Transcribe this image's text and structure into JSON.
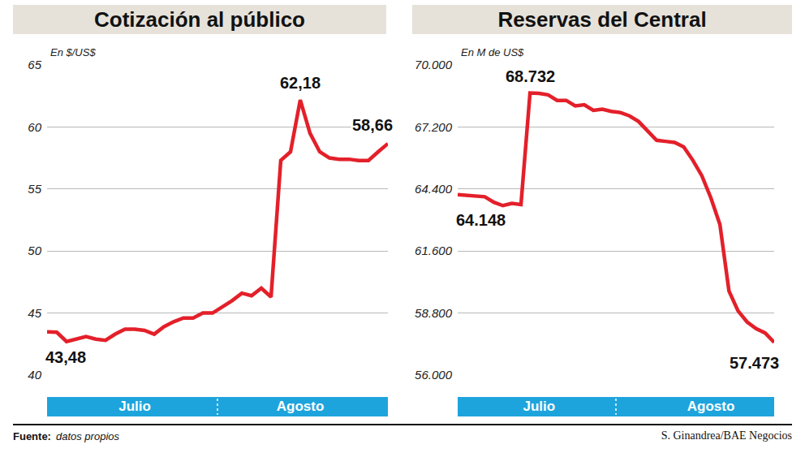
{
  "chart_data": [
    {
      "type": "line",
      "title": "Cotización al público",
      "y_label": "En $/US$",
      "categories": [
        null,
        null,
        null,
        null,
        null,
        null,
        null,
        null,
        null,
        "Julio",
        null,
        null,
        null,
        null,
        null,
        null,
        null,
        null,
        null,
        null,
        null,
        null,
        null,
        null,
        null,
        null,
        "Agosto",
        null,
        null,
        null,
        null,
        null,
        null,
        null,
        null,
        null
      ],
      "values": [
        43.48,
        43.45,
        42.7,
        42.9,
        43.1,
        42.9,
        42.8,
        43.3,
        43.7,
        43.7,
        43.6,
        43.3,
        43.9,
        44.3,
        44.6,
        44.6,
        45.0,
        45.0,
        45.5,
        46.0,
        46.6,
        46.4,
        47.0,
        46.3,
        57.3,
        58.0,
        62.18,
        59.5,
        58.0,
        57.5,
        57.4,
        57.4,
        57.3,
        57.3,
        58.0,
        58.66
      ],
      "value_labels": [
        "43,48",
        null,
        null,
        null,
        null,
        null,
        null,
        null,
        null,
        null,
        null,
        null,
        null,
        null,
        null,
        null,
        null,
        null,
        null,
        null,
        null,
        null,
        null,
        null,
        null,
        null,
        "62,18",
        null,
        null,
        null,
        null,
        null,
        null,
        null,
        null,
        "58,66"
      ],
      "data_labels": true,
      "color": "#e3202a",
      "ylim": [
        40,
        65
      ],
      "yticks": [
        40,
        45,
        50,
        55,
        60,
        65
      ],
      "grid": true
    },
    {
      "type": "line",
      "title": "Reservas del Central",
      "y_label": "En M de US$",
      "categories": [
        null,
        null,
        null,
        null,
        null,
        null,
        null,
        null,
        null,
        "Julio",
        null,
        null,
        null,
        null,
        null,
        null,
        null,
        null,
        null,
        null,
        null,
        null,
        null,
        null,
        null,
        null,
        null,
        null,
        "Agosto",
        null,
        null,
        null,
        null,
        null,
        null,
        null
      ],
      "values": [
        64148,
        64120,
        64100,
        64050,
        63800,
        63650,
        63750,
        63700,
        68732,
        68720,
        68650,
        68400,
        68400,
        68150,
        68200,
        67950,
        68000,
        67900,
        67850,
        67700,
        67450,
        67000,
        66600,
        66550,
        66500,
        66300,
        65700,
        65000,
        64000,
        62800,
        59800,
        58900,
        58400,
        58100,
        57900,
        57473
      ],
      "value_labels": [
        "64.148",
        null,
        null,
        null,
        null,
        null,
        null,
        null,
        "68.732",
        null,
        null,
        null,
        null,
        null,
        null,
        null,
        null,
        null,
        null,
        null,
        null,
        null,
        null,
        null,
        null,
        null,
        null,
        null,
        null,
        null,
        null,
        null,
        null,
        null,
        null,
        "57.473"
      ],
      "data_labels": true,
      "color": "#e3202a",
      "ylim": [
        56000,
        70000
      ],
      "yticks": [
        {
          "value": 56000,
          "label": "56.000"
        },
        {
          "value": 58800,
          "label": "58.800"
        },
        {
          "value": 61600,
          "label": "61.600"
        },
        {
          "value": 64400,
          "label": "64.400"
        },
        {
          "value": 67200,
          "label": "67.200"
        },
        {
          "value": 70000,
          "label": "70.000"
        }
      ],
      "grid": true
    }
  ],
  "footer": {
    "source_label": "Fuente:",
    "source": "datos propios",
    "credit": "S. Ginandrea/BAE Negocios"
  }
}
